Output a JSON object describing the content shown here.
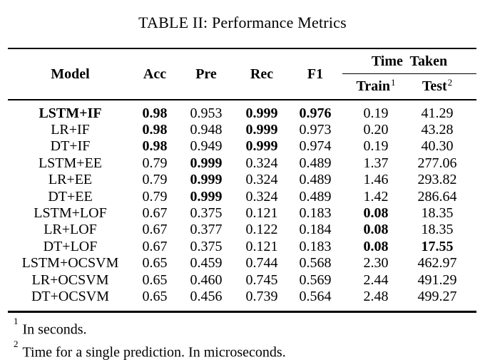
{
  "caption": "TABLE II: Performance Metrics",
  "colors": {
    "text": "#000000",
    "background": "#ffffff",
    "rule": "#000000"
  },
  "table": {
    "columns": [
      "Model",
      "Acc",
      "Pre",
      "Rec",
      "F1"
    ],
    "group_header": {
      "label": "Time Taken",
      "children": [
        {
          "label": "Train",
          "sup": "1"
        },
        {
          "label": "Test",
          "sup": "2"
        }
      ]
    },
    "rows": [
      {
        "cells": [
          "LSTM+IF",
          "0.98",
          "0.953",
          "0.999",
          "0.976",
          "0.19",
          "41.29"
        ],
        "bold_cols": [
          0,
          1,
          3,
          4
        ]
      },
      {
        "cells": [
          "LR+IF",
          "0.98",
          "0.948",
          "0.999",
          "0.973",
          "0.20",
          "43.28"
        ],
        "bold_cols": [
          1,
          3
        ]
      },
      {
        "cells": [
          "DT+IF",
          "0.98",
          "0.949",
          "0.999",
          "0.974",
          "0.19",
          "40.30"
        ],
        "bold_cols": [
          1,
          3
        ]
      },
      {
        "cells": [
          "LSTM+EE",
          "0.79",
          "0.999",
          "0.324",
          "0.489",
          "1.37",
          "277.06"
        ],
        "bold_cols": [
          2
        ]
      },
      {
        "cells": [
          "LR+EE",
          "0.79",
          "0.999",
          "0.324",
          "0.489",
          "1.46",
          "293.82"
        ],
        "bold_cols": [
          2
        ]
      },
      {
        "cells": [
          "DT+EE",
          "0.79",
          "0.999",
          "0.324",
          "0.489",
          "1.42",
          "286.64"
        ],
        "bold_cols": [
          2
        ]
      },
      {
        "cells": [
          "LSTM+LOF",
          "0.67",
          "0.375",
          "0.121",
          "0.183",
          "0.08",
          "18.35"
        ],
        "bold_cols": [
          5
        ]
      },
      {
        "cells": [
          "LR+LOF",
          "0.67",
          "0.377",
          "0.122",
          "0.184",
          "0.08",
          "18.35"
        ],
        "bold_cols": [
          5
        ]
      },
      {
        "cells": [
          "DT+LOF",
          "0.67",
          "0.375",
          "0.121",
          "0.183",
          "0.08",
          "17.55"
        ],
        "bold_cols": [
          5,
          6
        ]
      },
      {
        "cells": [
          "LSTM+OCSVM",
          "0.65",
          "0.459",
          "0.744",
          "0.568",
          "2.30",
          "462.97"
        ],
        "bold_cols": []
      },
      {
        "cells": [
          "LR+OCSVM",
          "0.65",
          "0.460",
          "0.745",
          "0.569",
          "2.44",
          "491.29"
        ],
        "bold_cols": []
      },
      {
        "cells": [
          "DT+OCSVM",
          "0.65",
          "0.456",
          "0.739",
          "0.564",
          "2.48",
          "499.27"
        ],
        "bold_cols": []
      }
    ]
  },
  "footnotes": [
    {
      "sup": "1",
      "text": "In seconds."
    },
    {
      "sup": "2",
      "text": "Time for a single prediction. In microseconds."
    }
  ]
}
